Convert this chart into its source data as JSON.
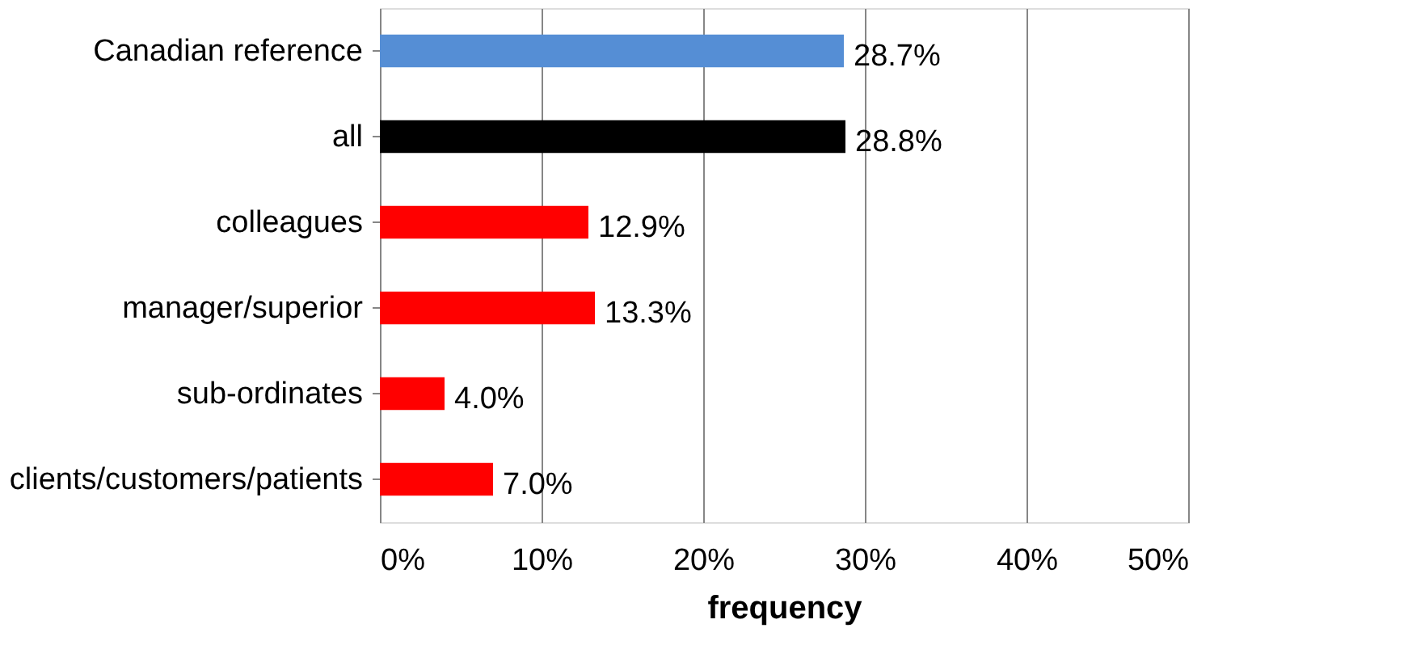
{
  "chart_data": {
    "type": "bar",
    "orientation": "horizontal",
    "xlabel": "frequency",
    "categories": [
      "Canadian reference",
      "all",
      "colleagues",
      "manager/superior",
      "sub-ordinates",
      "clients/customers/patients"
    ],
    "values": [
      28.7,
      28.8,
      12.9,
      13.3,
      4.0,
      7.0
    ],
    "colors": [
      "#558ed5",
      "#000000",
      "#ff0000",
      "#ff0000",
      "#ff0000",
      "#ff0000"
    ],
    "value_labels": [
      "28.7%",
      "28.8%",
      "12.9%",
      "13.3%",
      "4.0%",
      "7.0%"
    ],
    "xlim": [
      0,
      50
    ],
    "xticks": [
      {
        "value": 0,
        "label": "0%"
      },
      {
        "value": 10,
        "label": "10%"
      },
      {
        "value": 20,
        "label": "20%"
      },
      {
        "value": 30,
        "label": "30%"
      },
      {
        "value": 40,
        "label": "40%"
      },
      {
        "value": 50,
        "label": "50%"
      }
    ],
    "grid": "x"
  }
}
